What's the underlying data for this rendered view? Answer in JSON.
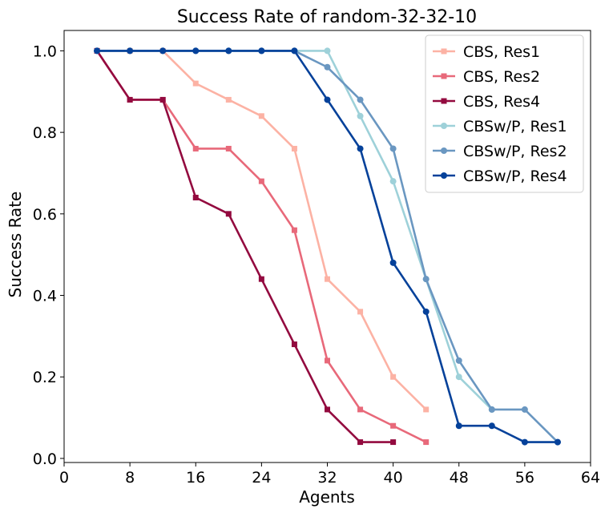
{
  "chart_data": {
    "type": "line",
    "title": "Success Rate of random-32-32-10",
    "xlabel": "Agents",
    "ylabel": "Success Rate",
    "xlim": [
      0,
      64
    ],
    "ylim": [
      -0.01,
      1.05
    ],
    "xticks": [
      0,
      8,
      16,
      24,
      32,
      40,
      48,
      56,
      64
    ],
    "yticks": [
      0.0,
      0.2,
      0.4,
      0.6,
      0.8,
      1.0
    ],
    "ytick_labels": [
      "0.0",
      "0.2",
      "0.4",
      "0.6",
      "0.8",
      "1.0"
    ],
    "grid": false,
    "legend_position": "top-right",
    "series": [
      {
        "name": "CBS, Res1",
        "color": "#fcb2a4",
        "marker": "square",
        "x": [
          4,
          8,
          12,
          16,
          20,
          24,
          28,
          32,
          36,
          40,
          44
        ],
        "y": [
          1.0,
          1.0,
          1.0,
          0.92,
          0.88,
          0.84,
          0.76,
          0.44,
          0.36,
          0.2,
          0.12
        ]
      },
      {
        "name": "CBS, Res2",
        "color": "#e8697a",
        "marker": "square",
        "x": [
          4,
          8,
          12,
          16,
          20,
          24,
          28,
          32,
          36,
          40,
          44
        ],
        "y": [
          1.0,
          0.88,
          0.88,
          0.76,
          0.76,
          0.68,
          0.56,
          0.24,
          0.12,
          0.08,
          0.04
        ]
      },
      {
        "name": "CBS, Res4",
        "color": "#930a3f",
        "marker": "square",
        "x": [
          4,
          8,
          12,
          16,
          20,
          24,
          28,
          32,
          36,
          40
        ],
        "y": [
          1.0,
          0.88,
          0.88,
          0.64,
          0.6,
          0.44,
          0.28,
          0.12,
          0.04,
          0.04
        ]
      },
      {
        "name": "CBSw/P, Res1",
        "color": "#9ed1d9",
        "marker": "circle",
        "x": [
          4,
          8,
          12,
          16,
          20,
          24,
          28,
          32,
          36,
          40,
          44,
          48,
          52
        ],
        "y": [
          1.0,
          1.0,
          1.0,
          1.0,
          1.0,
          1.0,
          1.0,
          1.0,
          0.84,
          0.68,
          0.44,
          0.2,
          0.12
        ]
      },
      {
        "name": "CBSw/P, Res2",
        "color": "#6a97c1",
        "marker": "circle",
        "x": [
          4,
          8,
          12,
          16,
          20,
          24,
          28,
          32,
          36,
          40,
          44,
          48,
          52,
          56,
          60
        ],
        "y": [
          1.0,
          1.0,
          1.0,
          1.0,
          1.0,
          1.0,
          1.0,
          0.96,
          0.88,
          0.76,
          0.44,
          0.24,
          0.12,
          0.12,
          0.04
        ]
      },
      {
        "name": "CBSw/P, Res4",
        "color": "#05419a",
        "marker": "circle",
        "x": [
          4,
          8,
          12,
          16,
          20,
          24,
          28,
          32,
          36,
          40,
          44,
          48,
          52,
          56,
          60
        ],
        "y": [
          1.0,
          1.0,
          1.0,
          1.0,
          1.0,
          1.0,
          1.0,
          0.88,
          0.76,
          0.48,
          0.36,
          0.08,
          0.08,
          0.04,
          0.04
        ]
      }
    ]
  }
}
